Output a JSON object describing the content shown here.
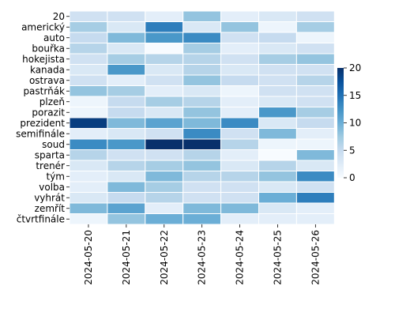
{
  "chart_data": {
    "type": "heatmap",
    "title": "",
    "xlabel": "",
    "ylabel": "",
    "x": [
      "2024-05-20",
      "2024-05-21",
      "2024-05-22",
      "2024-05-23",
      "2024-05-24",
      "2024-05-25",
      "2024-05-26"
    ],
    "y": [
      "20",
      "americký",
      "auto",
      "bouřka",
      "hokejista",
      "kanada",
      "ostrava",
      "pastrňák",
      "plzeň",
      "porazit",
      "prezident",
      "semifinále",
      "soud",
      "sparta",
      "trenér",
      "tým",
      "volba",
      "vyhrát",
      "zemřít",
      "čtvrtfinále"
    ],
    "values": [
      [
        4,
        4,
        2,
        8,
        2,
        3,
        4
      ],
      [
        7,
        3,
        14,
        3,
        8,
        1,
        7
      ],
      [
        5,
        9,
        12,
        13,
        4,
        5,
        1
      ],
      [
        6,
        3,
        0,
        7,
        2,
        3,
        4
      ],
      [
        4,
        7,
        6,
        6,
        4,
        7,
        8
      ],
      [
        3,
        12,
        3,
        6,
        3,
        4,
        4
      ],
      [
        4,
        2,
        4,
        8,
        5,
        4,
        6
      ],
      [
        8,
        7,
        2,
        3,
        1,
        4,
        4
      ],
      [
        1,
        5,
        7,
        6,
        2,
        3,
        4
      ],
      [
        1,
        5,
        3,
        8,
        2,
        12,
        7
      ],
      [
        19,
        9,
        11,
        9,
        13,
        3,
        5
      ],
      [
        2,
        3,
        4,
        13,
        4,
        9,
        2
      ],
      [
        13,
        12,
        20,
        20,
        6,
        1,
        1
      ],
      [
        6,
        4,
        4,
        6,
        2,
        0,
        9
      ],
      [
        3,
        6,
        7,
        8,
        3,
        6,
        3
      ],
      [
        2,
        3,
        9,
        6,
        6,
        8,
        13
      ],
      [
        2,
        9,
        7,
        4,
        4,
        3,
        4
      ],
      [
        3,
        5,
        6,
        4,
        4,
        10,
        14
      ],
      [
        9,
        11,
        2,
        9,
        9,
        3,
        2
      ],
      [
        1,
        8,
        10,
        10,
        2,
        2,
        2
      ]
    ],
    "colorbar": {
      "min": 0,
      "max": 20,
      "ticks": [
        0,
        5,
        10,
        15,
        20
      ]
    },
    "colormap": [
      "#f7fbff",
      "#deebf7",
      "#c6dbef",
      "#9ecae1",
      "#6baed6",
      "#4292c6",
      "#2171b5",
      "#08519c",
      "#08306b"
    ]
  }
}
